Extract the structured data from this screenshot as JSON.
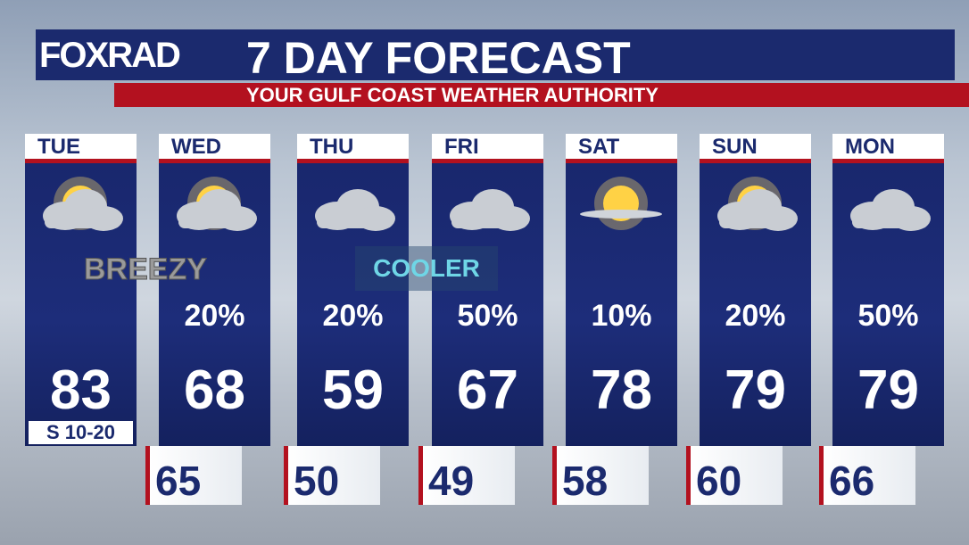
{
  "header": {
    "logo": "FOXRAD",
    "title": "7 DAY FORECAST",
    "subtitle": "YOUR GULF COAST WEATHER AUTHORITY"
  },
  "days": [
    {
      "day": "TUE",
      "high": "83",
      "wind": "S 10-20"
    },
    {
      "day": "WED",
      "precip": "20%",
      "high": "68",
      "low": "65"
    },
    {
      "day": "THU",
      "precip": "20%",
      "high": "59",
      "low": "50"
    },
    {
      "day": "FRI",
      "precip": "50%",
      "high": "67",
      "low": "49"
    },
    {
      "day": "SAT",
      "precip": "10%",
      "high": "78",
      "low": "58"
    },
    {
      "day": "SUN",
      "precip": "20%",
      "high": "79",
      "low": "60"
    },
    {
      "day": "MON",
      "precip": "50%",
      "high": "79",
      "low": "66"
    }
  ],
  "annotations": {
    "breezy": "BREEZY",
    "cooler": "COOLER"
  }
}
